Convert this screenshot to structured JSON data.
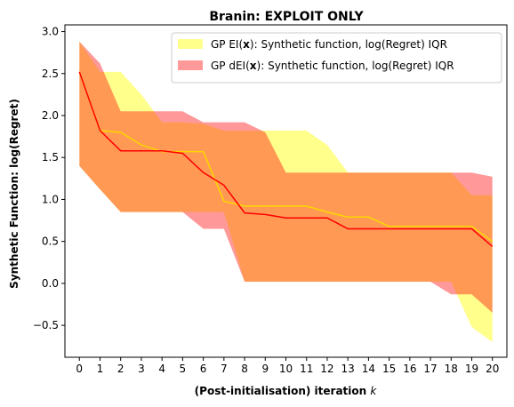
{
  "chart_data": {
    "type": "area",
    "title": "Branin: EXPLOIT ONLY",
    "xlabel_prefix": "(Post-initialisation) iteration ",
    "xlabel_var": "k",
    "ylabel": "Synthetic Function: log(Regret)",
    "xlim": [
      -0.7,
      20.7
    ],
    "ylim": [
      -0.88,
      3.08
    ],
    "xticks": [
      0,
      1,
      2,
      3,
      4,
      5,
      6,
      7,
      8,
      9,
      10,
      11,
      12,
      13,
      14,
      15,
      16,
      17,
      18,
      19,
      20
    ],
    "yticks": [
      -0.5,
      0.0,
      0.5,
      1.0,
      1.5,
      2.0,
      2.5,
      3.0
    ],
    "ytick_labels": [
      "−0.5",
      "0.0",
      "0.5",
      "1.0",
      "1.5",
      "2.0",
      "2.5",
      "3.0"
    ],
    "legend_position": "upper-right",
    "x": [
      0,
      1,
      2,
      3,
      4,
      5,
      6,
      7,
      8,
      9,
      10,
      11,
      12,
      13,
      14,
      15,
      16,
      17,
      18,
      19,
      20
    ],
    "series": [
      {
        "name_prefix": "GP EI(",
        "name_bold": "x",
        "name_suffix": "):   Synthetic function, log(Regret) IQR",
        "band_color": "#ffff00",
        "band_opacity": 0.45,
        "line_color": "#ffd700",
        "lower": [
          1.4,
          1.12,
          0.85,
          0.85,
          0.85,
          0.85,
          0.85,
          0.85,
          0.02,
          0.02,
          0.02,
          0.02,
          0.02,
          0.02,
          0.02,
          0.02,
          0.02,
          0.02,
          0.02,
          -0.52,
          -0.7
        ],
        "upper": [
          2.88,
          2.52,
          2.52,
          2.25,
          1.92,
          1.92,
          1.9,
          1.82,
          1.82,
          1.82,
          1.82,
          1.82,
          1.65,
          1.32,
          1.32,
          1.32,
          1.32,
          1.32,
          1.32,
          1.05,
          1.05
        ],
        "median": [
          2.52,
          1.82,
          1.8,
          1.65,
          1.57,
          1.57,
          1.57,
          0.98,
          0.92,
          0.92,
          0.92,
          0.92,
          0.85,
          0.79,
          0.79,
          0.68,
          0.68,
          0.68,
          0.68,
          0.68,
          0.5
        ]
      },
      {
        "name_prefix": "GP dEI(",
        "name_bold": "x",
        "name_suffix": "): Synthetic function, log(Regret) IQR",
        "band_color": "#ff0000",
        "band_opacity": 0.4,
        "line_color": "#ff0000",
        "lower": [
          1.4,
          1.12,
          0.85,
          0.85,
          0.85,
          0.85,
          0.65,
          0.65,
          0.02,
          0.02,
          0.02,
          0.02,
          0.02,
          0.02,
          0.02,
          0.02,
          0.02,
          0.02,
          -0.13,
          -0.13,
          -0.35
        ],
        "upper": [
          2.88,
          2.62,
          2.05,
          2.05,
          2.05,
          2.05,
          1.92,
          1.92,
          1.92,
          1.8,
          1.32,
          1.32,
          1.32,
          1.32,
          1.32,
          1.32,
          1.32,
          1.32,
          1.32,
          1.32,
          1.27
        ],
        "median": [
          2.52,
          1.82,
          1.58,
          1.58,
          1.58,
          1.55,
          1.32,
          1.17,
          0.84,
          0.82,
          0.78,
          0.78,
          0.78,
          0.65,
          0.65,
          0.65,
          0.65,
          0.65,
          0.65,
          0.65,
          0.44
        ]
      }
    ]
  }
}
